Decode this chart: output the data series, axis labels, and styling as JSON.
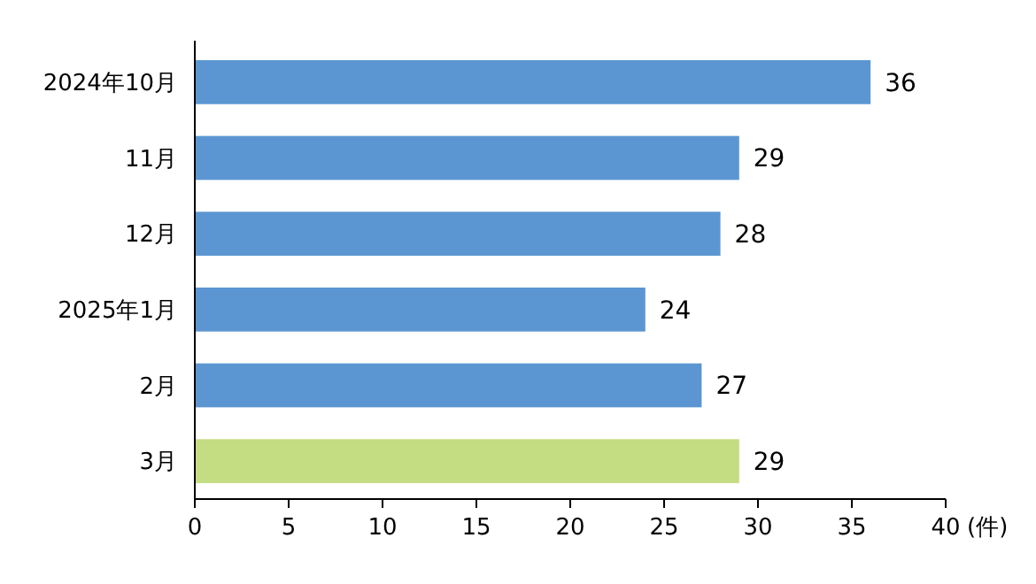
{
  "chart_data": {
    "type": "bar",
    "orientation": "horizontal",
    "categories": [
      "2024年10月",
      "11月",
      "12月",
      "2025年1月",
      "2月",
      "3月"
    ],
    "values": [
      36,
      29,
      28,
      24,
      27,
      29
    ],
    "colors": [
      "#5b96d2",
      "#5b96d2",
      "#5b96d2",
      "#5b96d2",
      "#5b96d2",
      "#c4dc82"
    ],
    "xlim": [
      0,
      40
    ],
    "xticks": [
      0,
      5,
      10,
      15,
      20,
      25,
      30,
      35,
      40
    ],
    "xlabel": "(件)",
    "data_labels": true,
    "grid": false
  }
}
